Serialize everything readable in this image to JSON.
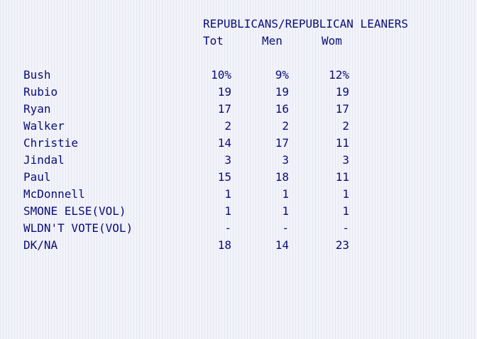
{
  "group_header": "REPUBLICANS/REPUBLICAN LEANERS",
  "columns": [
    "Tot",
    "Men",
    "Wom"
  ],
  "rows": [
    {
      "name": "Bush",
      "tot": "10%",
      "men": "9%",
      "wom": "12%"
    },
    {
      "name": "Rubio",
      "tot": "19",
      "men": "19",
      "wom": "19"
    },
    {
      "name": "Ryan",
      "tot": "17",
      "men": "16",
      "wom": "17"
    },
    {
      "name": "Walker",
      "tot": "2",
      "men": "2",
      "wom": "2"
    },
    {
      "name": "Christie",
      "tot": "14",
      "men": "17",
      "wom": "11"
    },
    {
      "name": "Jindal",
      "tot": "3",
      "men": "3",
      "wom": "3"
    },
    {
      "name": "Paul",
      "tot": "15",
      "men": "18",
      "wom": "11"
    },
    {
      "name": "McDonnell",
      "tot": "1",
      "men": "1",
      "wom": "1"
    },
    {
      "name": "SMONE ELSE(VOL)",
      "tot": "1",
      "men": "1",
      "wom": "1"
    },
    {
      "name": "WLDN'T VOTE(VOL)",
      "tot": "-",
      "men": "-",
      "wom": "-"
    },
    {
      "name": "DK/NA",
      "tot": "18",
      "men": "14",
      "wom": "23"
    }
  ]
}
